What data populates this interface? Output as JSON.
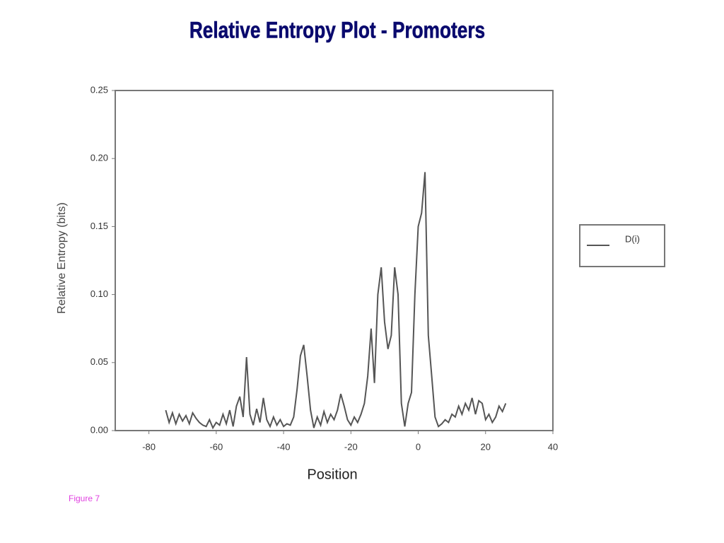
{
  "chart_data": {
    "type": "line",
    "title": "Relative Entropy Plot - Promoters",
    "xlabel": "Position",
    "ylabel": "Relative Entropy (bits)",
    "caption": "Figure 7",
    "x": [
      -75,
      -74,
      -73,
      -72,
      -71,
      -70,
      -69,
      -68,
      -67,
      -66,
      -65,
      -64,
      -63,
      -62,
      -61,
      -60,
      -59,
      -58,
      -57,
      -56,
      -55,
      -54,
      -53,
      -52,
      -51,
      -50,
      -49,
      -48,
      -47,
      -46,
      -45,
      -44,
      -43,
      -42,
      -41,
      -40,
      -39,
      -38,
      -37,
      -36,
      -35,
      -34,
      -33,
      -32,
      -31,
      -30,
      -29,
      -28,
      -27,
      -26,
      -25,
      -24,
      -23,
      -22,
      -21,
      -20,
      -19,
      -18,
      -17,
      -16,
      -15,
      -14,
      -13,
      -12,
      -11,
      -10,
      -9,
      -8,
      -7,
      -6,
      -5,
      -4,
      -3,
      -2,
      -1,
      0,
      1,
      2,
      3,
      4,
      5,
      6,
      7,
      8,
      9,
      10,
      11,
      12,
      13,
      14,
      15,
      16,
      17,
      18,
      19,
      20,
      21,
      22,
      23,
      24,
      25,
      26
    ],
    "series": [
      {
        "name": "D(i)",
        "color": "#555555",
        "values": [
          0.015,
          0.006,
          0.013,
          0.005,
          0.012,
          0.007,
          0.011,
          0.005,
          0.013,
          0.009,
          0.006,
          0.004,
          0.003,
          0.008,
          0.002,
          0.006,
          0.004,
          0.012,
          0.005,
          0.015,
          0.003,
          0.018,
          0.025,
          0.01,
          0.054,
          0.012,
          0.004,
          0.016,
          0.006,
          0.024,
          0.008,
          0.003,
          0.01,
          0.004,
          0.008,
          0.003,
          0.005,
          0.004,
          0.01,
          0.03,
          0.055,
          0.063,
          0.04,
          0.015,
          0.002,
          0.01,
          0.004,
          0.014,
          0.006,
          0.012,
          0.008,
          0.015,
          0.027,
          0.018,
          0.008,
          0.004,
          0.01,
          0.006,
          0.012,
          0.02,
          0.04,
          0.075,
          0.035,
          0.1,
          0.12,
          0.08,
          0.06,
          0.07,
          0.12,
          0.1,
          0.02,
          0.003,
          0.02,
          0.028,
          0.1,
          0.15,
          0.16,
          0.19,
          0.07,
          0.04,
          0.01,
          0.003,
          0.005,
          0.008,
          0.006,
          0.012,
          0.01,
          0.018,
          0.012,
          0.02,
          0.015,
          0.024,
          0.012,
          0.022,
          0.02,
          0.008,
          0.012,
          0.006,
          0.01,
          0.018,
          0.014,
          0.02
        ]
      }
    ],
    "xlim": [
      -90,
      40
    ],
    "xticks": [
      -80,
      -60,
      -40,
      -20,
      0,
      20,
      40
    ],
    "ylim": [
      0,
      0.25
    ],
    "yticks": [
      {
        "value": 0,
        "label": "0.00"
      },
      {
        "value": 0.05,
        "label": "0.05"
      },
      {
        "value": 0.1,
        "label": "0.10"
      },
      {
        "value": 0.15,
        "label": "0.15"
      },
      {
        "value": 0.2,
        "label": "0.20"
      },
      {
        "value": 0.25,
        "label": "0.25"
      }
    ],
    "legend": "right"
  }
}
